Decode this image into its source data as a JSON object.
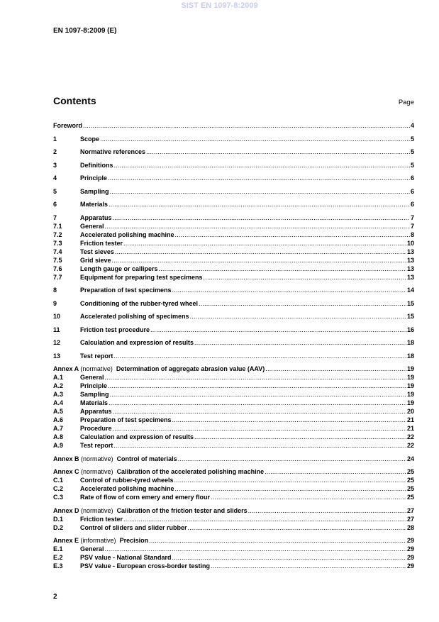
{
  "watermark": "SIST EN 1097-8:2009",
  "header": "EN 1097-8:2009 (E)",
  "contents_title": "Contents",
  "page_label": "Page",
  "footer_page": "2",
  "toc": [
    {
      "level": "main",
      "num": "",
      "title": "Foreword",
      "page": "4"
    },
    {
      "level": "main",
      "num": "1",
      "title": "Scope",
      "page": "5"
    },
    {
      "level": "main",
      "num": "2",
      "title": "Normative references",
      "page": "5"
    },
    {
      "level": "main",
      "num": "3",
      "title": "Definitions",
      "page": "5"
    },
    {
      "level": "main",
      "num": "4",
      "title": "Principle",
      "page": "6"
    },
    {
      "level": "main",
      "num": "5",
      "title": "Sampling",
      "page": "6"
    },
    {
      "level": "main",
      "num": "6",
      "title": "Materials",
      "page": "6"
    },
    {
      "level": "main",
      "num": "7",
      "title": "Apparatus",
      "page": "7"
    },
    {
      "level": "sub",
      "num": "7.1",
      "title": "General",
      "page": "7"
    },
    {
      "level": "sub",
      "num": "7.2",
      "title": "Accelerated polishing machine",
      "page": "8"
    },
    {
      "level": "sub",
      "num": "7.3",
      "title": "Friction tester",
      "page": "10"
    },
    {
      "level": "sub",
      "num": "7.4",
      "title": "Test sieves",
      "page": "13"
    },
    {
      "level": "sub",
      "num": "7.5",
      "title": "Grid sieve",
      "page": "13"
    },
    {
      "level": "sub",
      "num": "7.6",
      "title": "Length gauge or callipers",
      "page": "13"
    },
    {
      "level": "sub",
      "num": "7.7",
      "title": "Equipment for preparing test specimens",
      "page": "13"
    },
    {
      "level": "main",
      "num": "8",
      "title": "Preparation of test specimens",
      "page": "14"
    },
    {
      "level": "main",
      "num": "9",
      "title": "Conditioning of the rubber-tyred wheel",
      "page": "15"
    },
    {
      "level": "main",
      "num": "10",
      "title": "Accelerated polishing of specimens",
      "page": "15"
    },
    {
      "level": "main",
      "num": "11",
      "title": "Friction test procedure",
      "page": "16"
    },
    {
      "level": "main",
      "num": "12",
      "title": "Calculation and expression of results",
      "page": "18"
    },
    {
      "level": "main",
      "num": "13",
      "title": "Test report",
      "page": "18"
    },
    {
      "level": "annex",
      "annex": "Annex A",
      "type": "(normative)",
      "title": "Determination of aggregate abrasion value (AAV)",
      "page": "19"
    },
    {
      "level": "sub",
      "num": "A.1",
      "title": "General",
      "page": "19"
    },
    {
      "level": "sub",
      "num": "A.2",
      "title": "Principle",
      "page": "19"
    },
    {
      "level": "sub",
      "num": "A.3",
      "title": "Sampling",
      "page": "19"
    },
    {
      "level": "sub",
      "num": "A.4",
      "title": "Materials",
      "page": "19"
    },
    {
      "level": "sub",
      "num": "A.5",
      "title": "Apparatus",
      "page": "20"
    },
    {
      "level": "sub",
      "num": "A.6",
      "title": "Preparation of test specimens",
      "page": "21"
    },
    {
      "level": "sub",
      "num": "A.7",
      "title": "Procedure",
      "page": "21"
    },
    {
      "level": "sub",
      "num": "A.8",
      "title": "Calculation and expression of results",
      "page": "22"
    },
    {
      "level": "sub",
      "num": "A.9",
      "title": "Test report",
      "page": "22"
    },
    {
      "level": "annex",
      "annex": "Annex B",
      "type": "(normative)",
      "title": "Control of materials",
      "page": "24"
    },
    {
      "level": "annex",
      "annex": "Annex C",
      "type": "(normative)",
      "title": "Calibration of the accelerated polishing machine",
      "page": "25"
    },
    {
      "level": "sub",
      "num": "C.1",
      "title": "Control of rubber-tyred wheels",
      "page": "25"
    },
    {
      "level": "sub",
      "num": "C.2",
      "title": "Accelerated polishing machine",
      "page": "25"
    },
    {
      "level": "sub",
      "num": "C.3",
      "title": "Rate of flow of corn emery and emery flour",
      "page": "25"
    },
    {
      "level": "annex",
      "annex": "Annex D",
      "type": "(normative)",
      "title": "Calibration of the friction tester and sliders",
      "page": "27"
    },
    {
      "level": "sub",
      "num": "D.1",
      "title": "Friction tester",
      "page": "27"
    },
    {
      "level": "sub",
      "num": "D.2",
      "title": "Control of sliders and slider rubber",
      "page": "28"
    },
    {
      "level": "annex",
      "annex": "Annex E",
      "type": "(informative)",
      "title": "Precision",
      "page": "29"
    },
    {
      "level": "sub",
      "num": "E.1",
      "title": "General",
      "page": "29"
    },
    {
      "level": "sub",
      "num": "E.2",
      "title": "PSV value - National Standard",
      "page": "29"
    },
    {
      "level": "sub",
      "num": "E.3",
      "title": "PSV value - European cross-border testing",
      "page": "29"
    }
  ]
}
